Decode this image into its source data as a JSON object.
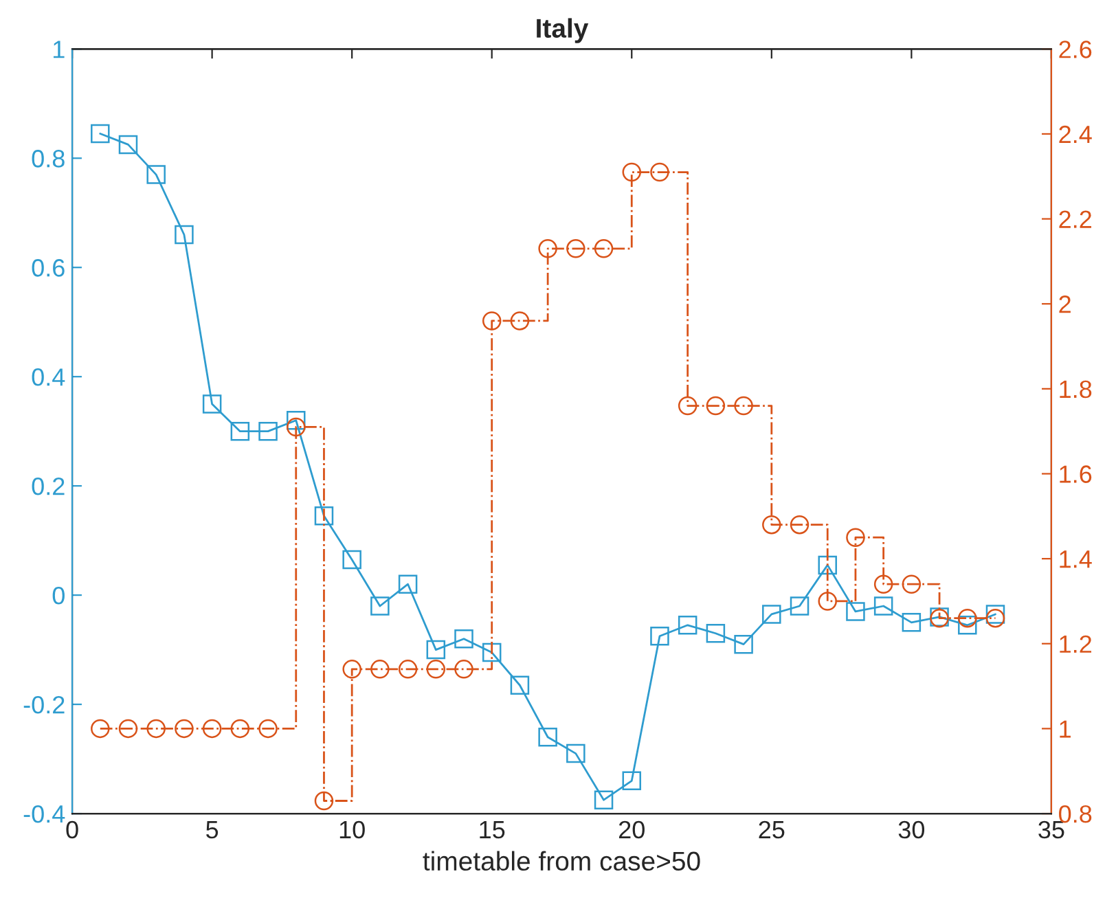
{
  "chart_data": {
    "type": "line",
    "title": "Italy",
    "xlabel": "timetable from case>50",
    "x": [
      1,
      2,
      3,
      4,
      5,
      6,
      7,
      8,
      9,
      10,
      11,
      12,
      13,
      14,
      15,
      16,
      17,
      18,
      19,
      20,
      21,
      22,
      23,
      24,
      25,
      26,
      27,
      28,
      29,
      30,
      31,
      32,
      33
    ],
    "series": [
      {
        "color": "#2e9ccf",
        "marker": "square",
        "line_style": "solid",
        "values": [
          0.845,
          0.825,
          0.77,
          0.66,
          0.35,
          0.3,
          0.3,
          0.32,
          0.145,
          0.065,
          -0.02,
          0.02,
          -0.1,
          -0.08,
          -0.105,
          -0.165,
          -0.26,
          -0.29,
          -0.375,
          -0.34,
          -0.075,
          -0.055,
          -0.07,
          -0.09,
          -0.035,
          -0.02,
          0.055,
          -0.03,
          -0.02,
          -0.05,
          -0.04,
          -0.055,
          -0.035
        ]
      },
      {
        "type": "step",
        "axis": "y2",
        "color": "#d95319",
        "marker": "circle",
        "line_style": "dashdot",
        "values": [
          1.0,
          1.0,
          1.0,
          1.0,
          1.0,
          1.0,
          1.0,
          1.71,
          0.83,
          1.14,
          1.14,
          1.14,
          1.14,
          1.14,
          1.96,
          1.96,
          2.13,
          2.13,
          2.13,
          2.31,
          2.31,
          1.76,
          1.76,
          1.76,
          1.48,
          1.48,
          1.3,
          1.45,
          1.34,
          1.34,
          1.26,
          1.26,
          1.26
        ]
      }
    ],
    "xlim": [
      0,
      35
    ],
    "xticks": [
      0,
      5,
      10,
      15,
      20,
      25,
      30,
      35
    ],
    "ylim": [
      -0.4,
      1
    ],
    "yticks": [
      -0.4,
      -0.2,
      0,
      0.2,
      0.4,
      0.6,
      0.8,
      1
    ],
    "y2lim": [
      0.8,
      2.6
    ],
    "y2ticks": [
      0.8,
      1,
      1.2,
      1.4,
      1.6,
      1.8,
      2,
      2.2,
      2.4,
      2.6
    ],
    "grid": false,
    "legend": false
  }
}
